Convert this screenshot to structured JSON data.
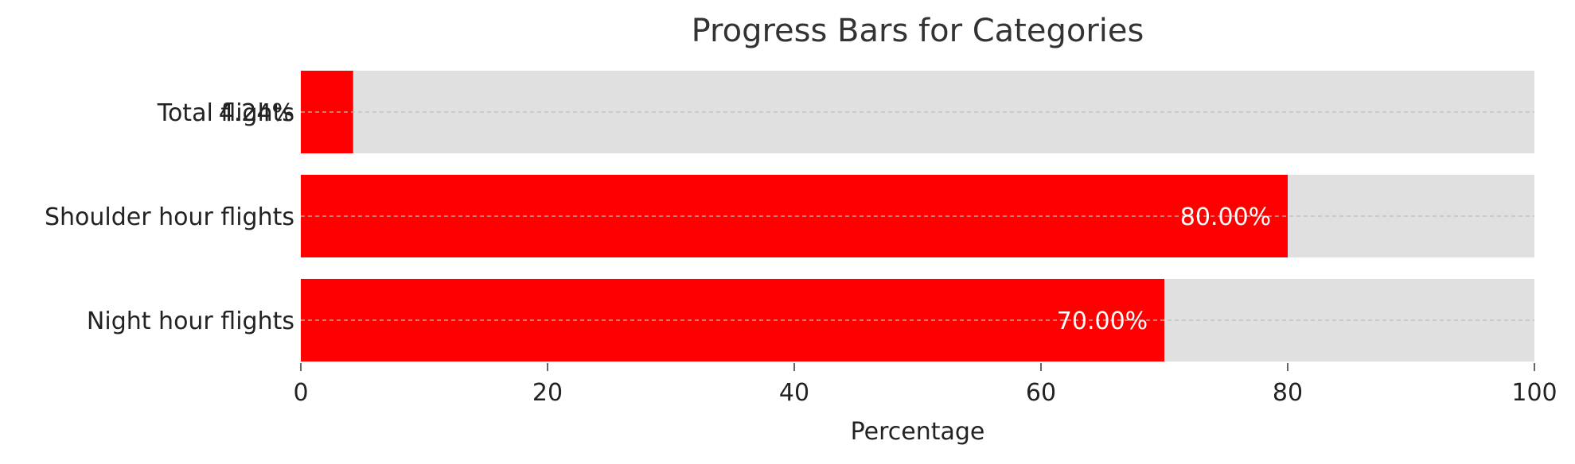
{
  "chart_data": {
    "type": "bar",
    "orientation": "horizontal",
    "title": "Progress Bars for Categories",
    "xlabel": "Percentage",
    "ylabel": "",
    "categories": [
      "Total flights",
      "Shoulder hour flights",
      "Night hour flights"
    ],
    "values": [
      4.24,
      80.0,
      70.0
    ],
    "value_labels": [
      "4.24%",
      "80.00%",
      "70.00%"
    ],
    "xlim": [
      0,
      100
    ],
    "xticks": [
      0,
      20,
      40,
      60,
      80,
      100
    ],
    "xtick_labels": [
      "0",
      "20",
      "40",
      "60",
      "80",
      "100"
    ],
    "grid": true,
    "legend": "none",
    "colors": {
      "bar": "#ff0000",
      "track": "#e0e0e0",
      "grid": "#bdbdbd",
      "label_on_bar": "#ffffff",
      "label_outside": "#222222"
    }
  }
}
